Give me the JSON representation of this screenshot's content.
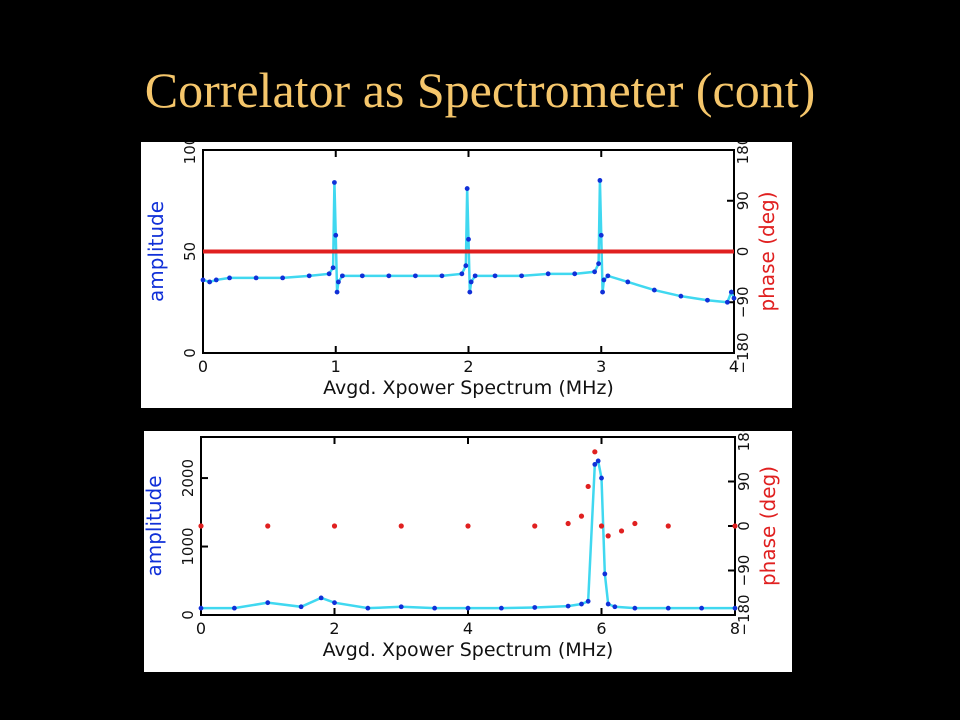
{
  "slide": {
    "title": "Correlator as Spectrometer (cont)"
  },
  "colors": {
    "background": "#000000",
    "title": "#f5c66b",
    "amplitude_points": "#1030d8",
    "amplitude_line": "#40d8f0",
    "phase": "#e02020",
    "axis": "#000000"
  },
  "chart_data": [
    {
      "type": "scatter",
      "title": "",
      "xlabel": "Avgd. Xpower Spectrum (MHz)",
      "ylabel": "amplitude",
      "y2label": "phase (deg)",
      "xlim": [
        0,
        4
      ],
      "ylim": [
        0,
        100
      ],
      "y2lim": [
        -180,
        180
      ],
      "x_ticks": [
        "0",
        "1",
        "2",
        "3",
        "4"
      ],
      "y_ticks": [
        "0",
        "50",
        "100"
      ],
      "y2_ticks": [
        "-180",
        "-90",
        "0",
        "90",
        "180"
      ],
      "grid": false,
      "series": [
        {
          "axis": "left",
          "x": [
            0,
            0.05,
            0.1,
            0.2,
            0.4,
            0.6,
            0.8,
            0.95,
            0.98,
            0.99,
            1.0,
            1.01,
            1.02,
            1.05,
            1.2,
            1.4,
            1.6,
            1.8,
            1.95,
            1.98,
            1.99,
            2.0,
            2.01,
            2.02,
            2.05,
            2.2,
            2.4,
            2.6,
            2.8,
            2.95,
            2.98,
            2.99,
            3.0,
            3.01,
            3.02,
            3.05,
            3.2,
            3.4,
            3.6,
            3.8,
            3.95,
            3.98,
            4.0
          ],
          "values": [
            36,
            35,
            36,
            37,
            37,
            37,
            38,
            39,
            42,
            84,
            58,
            30,
            35,
            38,
            38,
            38,
            38,
            38,
            39,
            43,
            81,
            56,
            30,
            35,
            38,
            38,
            38,
            39,
            39,
            40,
            44,
            85,
            58,
            30,
            36,
            38,
            35,
            31,
            28,
            26,
            25,
            30,
            27
          ]
        },
        {
          "axis": "right",
          "x": [
            0,
            1,
            2,
            3,
            4
          ],
          "values": [
            0,
            0,
            0,
            0,
            0
          ]
        }
      ]
    },
    {
      "type": "scatter",
      "title": "",
      "xlabel": "Avgd. Xpower Spectrum (MHz)",
      "ylabel": "amplitude",
      "y2label": "phase (deg)",
      "xlim": [
        0,
        8
      ],
      "ylim": [
        0,
        2600
      ],
      "y2lim": [
        -180,
        180
      ],
      "x_ticks": [
        "0",
        "2",
        "4",
        "6",
        "8"
      ],
      "y_ticks": [
        "0",
        "1000",
        "2000"
      ],
      "y2_ticks": [
        "-180",
        "-90",
        "0",
        "90",
        "180"
      ],
      "grid": false,
      "series": [
        {
          "axis": "left",
          "x": [
            0,
            0.5,
            1.0,
            1.5,
            1.8,
            2.0,
            2.5,
            3.0,
            3.5,
            4.0,
            4.5,
            5.0,
            5.5,
            5.7,
            5.8,
            5.9,
            5.95,
            6.0,
            6.05,
            6.1,
            6.2,
            6.5,
            7.0,
            7.5,
            8.0
          ],
          "values": [
            100,
            100,
            180,
            120,
            250,
            180,
            100,
            120,
            100,
            100,
            100,
            110,
            130,
            160,
            200,
            2200,
            2250,
            2000,
            600,
            160,
            120,
            100,
            100,
            100,
            100
          ]
        },
        {
          "axis": "right",
          "x": [
            0,
            1,
            2,
            3,
            4,
            5,
            5.5,
            5.7,
            5.8,
            5.9,
            6.0,
            6.1,
            6.3,
            6.5,
            7,
            8
          ],
          "values": [
            0,
            0,
            0,
            0,
            0,
            0,
            5,
            20,
            80,
            150,
            0,
            -20,
            -10,
            5,
            0,
            0
          ]
        }
      ]
    }
  ]
}
